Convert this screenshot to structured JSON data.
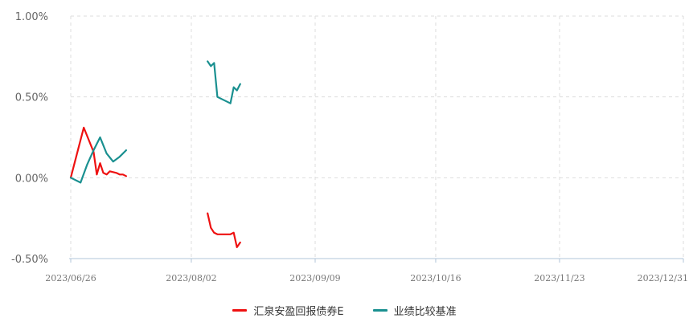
{
  "chart_data": {
    "type": "line",
    "title": "",
    "xlabel": "",
    "ylabel": "",
    "x_ticks": [
      "2023/06/26",
      "2023/08/02",
      "2023/09/09",
      "2023/10/16",
      "2023/11/23",
      "2023/12/31"
    ],
    "y_ticks": [
      "1.00%",
      "0.50%",
      "0.00%",
      "-0.50%"
    ],
    "xlim": [
      "2023/06/26",
      "2023/12/31"
    ],
    "ylim": [
      -0.5,
      1.0
    ],
    "y_unit": "%",
    "grid": true,
    "legend_position": "bottom-center",
    "series": [
      {
        "name": "汇泉安盈回报债券E",
        "color": "#ee1111",
        "segments": [
          [
            {
              "x": "2023/06/26",
              "y": 0.0
            },
            {
              "x": "2023/06/30",
              "y": 0.31
            },
            {
              "x": "2023/07/03",
              "y": 0.16
            },
            {
              "x": "2023/07/04",
              "y": 0.02
            },
            {
              "x": "2023/07/05",
              "y": 0.09
            },
            {
              "x": "2023/07/06",
              "y": 0.03
            },
            {
              "x": "2023/07/07",
              "y": 0.02
            },
            {
              "x": "2023/07/08",
              "y": 0.04
            },
            {
              "x": "2023/07/10",
              "y": 0.03
            },
            {
              "x": "2023/07/11",
              "y": 0.02
            },
            {
              "x": "2023/07/12",
              "y": 0.02
            },
            {
              "x": "2023/07/13",
              "y": 0.01
            }
          ],
          [
            {
              "x": "2023/08/07",
              "y": -0.22
            },
            {
              "x": "2023/08/08",
              "y": -0.31
            },
            {
              "x": "2023/08/09",
              "y": -0.34
            },
            {
              "x": "2023/08/10",
              "y": -0.35
            },
            {
              "x": "2023/08/11",
              "y": -0.35
            },
            {
              "x": "2023/08/14",
              "y": -0.35
            },
            {
              "x": "2023/08/15",
              "y": -0.34
            },
            {
              "x": "2023/08/16",
              "y": -0.43
            },
            {
              "x": "2023/08/17",
              "y": -0.4
            }
          ]
        ]
      },
      {
        "name": "业绩比较基准",
        "color": "#1a9090",
        "segments": [
          [
            {
              "x": "2023/06/26",
              "y": 0.0
            },
            {
              "x": "2023/06/29",
              "y": -0.03
            },
            {
              "x": "2023/07/01",
              "y": 0.08
            },
            {
              "x": "2023/07/03",
              "y": 0.17
            },
            {
              "x": "2023/07/05",
              "y": 0.25
            },
            {
              "x": "2023/07/07",
              "y": 0.15
            },
            {
              "x": "2023/07/09",
              "y": 0.1
            },
            {
              "x": "2023/07/11",
              "y": 0.13
            },
            {
              "x": "2023/07/13",
              "y": 0.17
            }
          ],
          [
            {
              "x": "2023/08/07",
              "y": 0.72
            },
            {
              "x": "2023/08/08",
              "y": 0.69
            },
            {
              "x": "2023/08/09",
              "y": 0.71
            },
            {
              "x": "2023/08/10",
              "y": 0.5
            },
            {
              "x": "2023/08/13",
              "y": 0.47
            },
            {
              "x": "2023/08/14",
              "y": 0.46
            },
            {
              "x": "2023/08/15",
              "y": 0.56
            },
            {
              "x": "2023/08/16",
              "y": 0.54
            },
            {
              "x": "2023/08/17",
              "y": 0.58
            }
          ]
        ]
      }
    ]
  }
}
